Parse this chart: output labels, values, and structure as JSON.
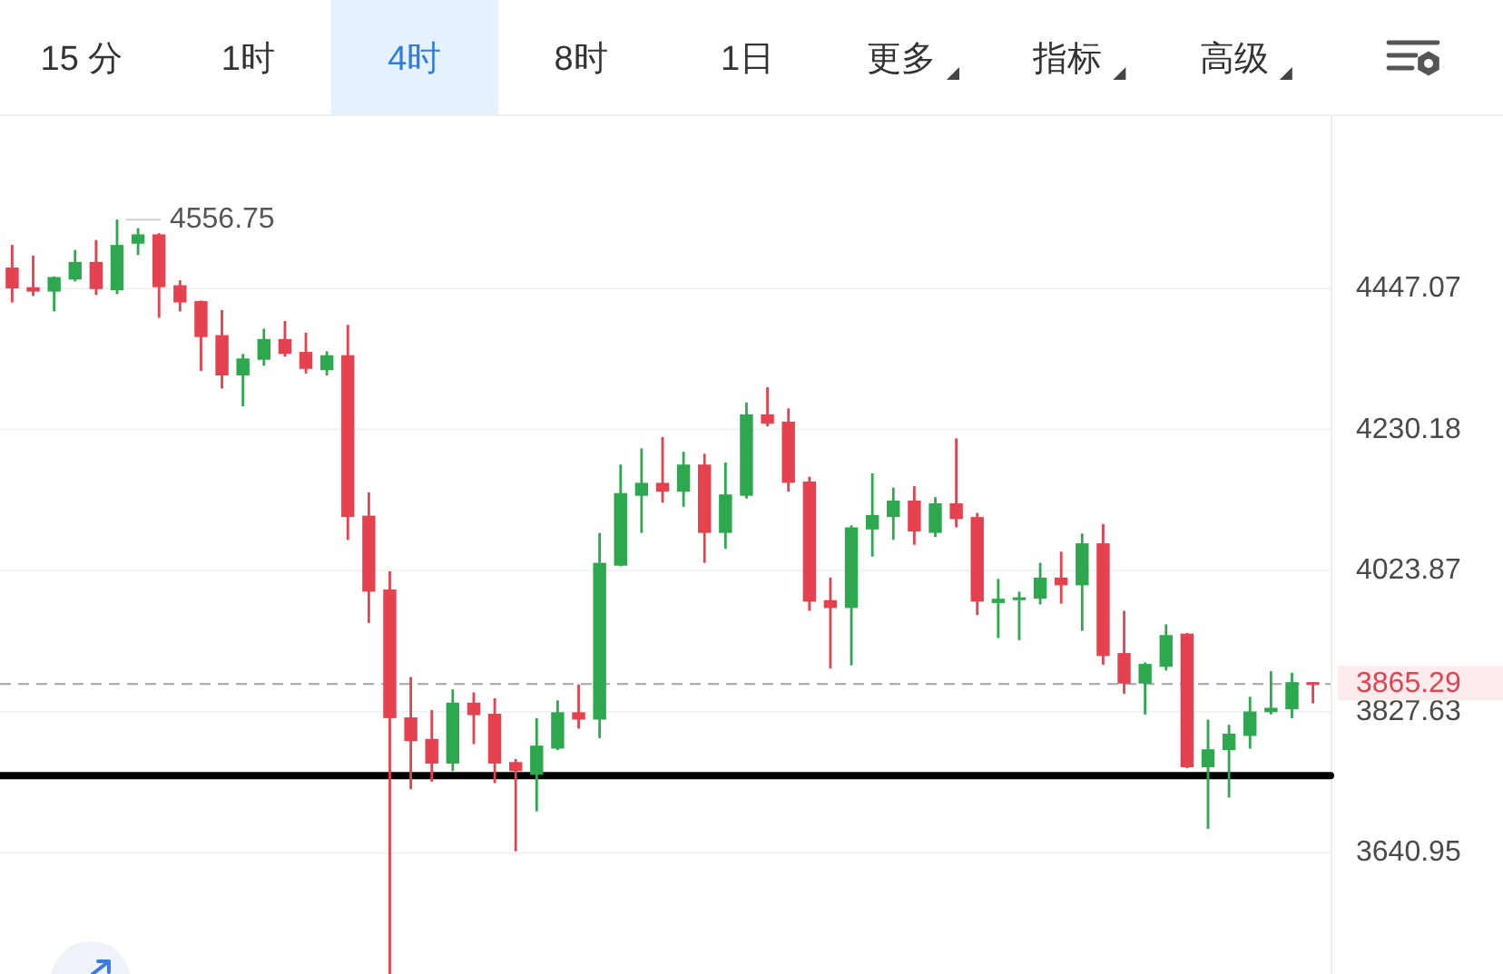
{
  "chart_data": {
    "type": "candlestick",
    "annotations": [
      "15 分",
      "1时",
      "4时",
      "8时",
      "1日",
      "更多",
      "指标",
      "高级",
      "4556.75"
    ],
    "categories": [
      null,
      null,
      null,
      null,
      null,
      null,
      null,
      null,
      null,
      null,
      null,
      null,
      null,
      null,
      null,
      null,
      null,
      null,
      null,
      null,
      null,
      null,
      null,
      null,
      null,
      null,
      null,
      null,
      null,
      null,
      null,
      null,
      null,
      null,
      null,
      null,
      null,
      null,
      null,
      null,
      null,
      null,
      null,
      null,
      null,
      null,
      null,
      null,
      null,
      null,
      null,
      null,
      null,
      null,
      null,
      null,
      null,
      null,
      null,
      null,
      null,
      null,
      null
    ],
    "ohlc": [
      [
        4480,
        4516,
        4425,
        4447
      ],
      [
        4449,
        4499,
        4435,
        4442
      ],
      [
        4442,
        4466,
        4411,
        4465
      ],
      [
        4461,
        4508,
        4458,
        4489
      ],
      [
        4489,
        4524,
        4437,
        4446
      ],
      [
        4444,
        4556.75,
        4438,
        4516
      ],
      [
        4518,
        4543,
        4500,
        4533
      ],
      [
        4533,
        4535,
        4401,
        4449
      ],
      [
        4452,
        4460,
        4411,
        4425
      ],
      [
        4427,
        4428,
        4319,
        4371
      ],
      [
        4374,
        4413,
        4292,
        4312
      ],
      [
        4312,
        4345,
        4265,
        4338
      ],
      [
        4336,
        4384,
        4327,
        4368
      ],
      [
        4368,
        4396,
        4341,
        4345
      ],
      [
        4348,
        4378,
        4315,
        4322
      ],
      [
        4320,
        4349,
        4312,
        4343
      ],
      [
        4343,
        4390,
        4068,
        4101
      ],
      [
        4103,
        4137,
        3950,
        3994
      ],
      [
        3997,
        4023,
        3488,
        3819
      ],
      [
        3820,
        3875,
        3724,
        3788
      ],
      [
        3791,
        3830,
        3734,
        3758
      ],
      [
        3758,
        3858,
        3748,
        3840
      ],
      [
        3840,
        3854,
        3784,
        3823
      ],
      [
        3825,
        3846,
        3732,
        3758
      ],
      [
        3760,
        3764,
        3643,
        3748
      ],
      [
        3743,
        3819,
        3695,
        3782
      ],
      [
        3778,
        3843,
        3776,
        3827
      ],
      [
        3827,
        3865,
        3805,
        3817
      ],
      [
        3817,
        4078,
        3792,
        4035
      ],
      [
        4031,
        4178,
        4030,
        4136
      ],
      [
        4132,
        4202,
        4078,
        4151
      ],
      [
        4151,
        4219,
        4122,
        4138
      ],
      [
        4138,
        4197,
        4116,
        4178
      ],
      [
        4178,
        4194,
        4035,
        4078
      ],
      [
        4078,
        4181,
        4055,
        4134
      ],
      [
        4132,
        4271,
        4128,
        4253
      ],
      [
        4253,
        4294,
        4235,
        4239
      ],
      [
        4242,
        4262,
        4138,
        4151
      ],
      [
        4153,
        4160,
        3967,
        3980
      ],
      [
        3982,
        4014,
        3887,
        3971
      ],
      [
        3971,
        4089,
        3891,
        4086
      ],
      [
        4083,
        4165,
        4044,
        4104
      ],
      [
        4101,
        4144,
        4068,
        4125
      ],
      [
        4125,
        4146,
        4061,
        4080
      ],
      [
        4078,
        4130,
        4072,
        4121
      ],
      [
        4121,
        4217,
        4086,
        4098
      ],
      [
        4101,
        4107,
        3961,
        3980
      ],
      [
        3978,
        4012,
        3929,
        3984
      ],
      [
        3982,
        3994,
        3926,
        3986
      ],
      [
        3984,
        4035,
        3976,
        4014
      ],
      [
        4014,
        4051,
        3977,
        4003
      ],
      [
        4003,
        4077,
        3939,
        4063
      ],
      [
        4063,
        4091,
        3892,
        3904
      ],
      [
        3908,
        3967,
        3852,
        3866
      ],
      [
        3866,
        3895,
        3824,
        3893
      ],
      [
        3889,
        3948,
        3884,
        3933
      ],
      [
        3935,
        3936,
        3752,
        3753
      ],
      [
        3753,
        3817,
        3672,
        3777
      ],
      [
        3776,
        3810,
        3713,
        3798
      ],
      [
        3795,
        3848,
        3778,
        3828
      ],
      [
        3827,
        3883,
        3824,
        3833
      ],
      [
        3831,
        3881,
        3819,
        3868
      ],
      [
        3868,
        3868,
        3839,
        3865.29
      ]
    ],
    "colors": [
      "#e5414f",
      "#e5414f",
      "#2ea84f",
      "#2ea84f",
      "#e5414f",
      "#2ea84f",
      "#2ea84f",
      "#e5414f",
      "#e5414f",
      "#e5414f",
      "#e5414f",
      "#2ea84f",
      "#2ea84f",
      "#e5414f",
      "#e5414f",
      "#2ea84f",
      "#e5414f",
      "#e5414f",
      "#e5414f",
      "#e5414f",
      "#e5414f",
      "#2ea84f",
      "#e5414f",
      "#e5414f",
      "#e5414f",
      "#2ea84f",
      "#2ea84f",
      "#e5414f",
      "#2ea84f",
      "#2ea84f",
      "#2ea84f",
      "#e5414f",
      "#2ea84f",
      "#e5414f",
      "#2ea84f",
      "#2ea84f",
      "#e5414f",
      "#e5414f",
      "#e5414f",
      "#e5414f",
      "#2ea84f",
      "#2ea84f",
      "#2ea84f",
      "#e5414f",
      "#2ea84f",
      "#e5414f",
      "#e5414f",
      "#2ea84f",
      "#2ea84f",
      "#2ea84f",
      "#e5414f",
      "#2ea84f",
      "#e5414f",
      "#e5414f",
      "#2ea84f",
      "#2ea84f",
      "#e5414f",
      "#2ea84f",
      "#2ea84f",
      "#2ea84f",
      "#2ea84f",
      "#2ea84f",
      "#e5414f"
    ],
    "ylim": [
      3488,
      4727
    ],
    "yticks": [
      4447.07,
      4230.18,
      4023.87,
      3827.63,
      3640.95
    ],
    "log": true,
    "grid": "y",
    "tick_labels": "y",
    "ref_lines": [
      {
        "axis": "y",
        "value": 3865.29,
        "label": "3865.29",
        "color": "#a6a6a6",
        "line_style": "dashed"
      },
      {
        "axis": "y",
        "value": 3742,
        "color": "#000000",
        "line_style": "solid"
      }
    ]
  }
}
